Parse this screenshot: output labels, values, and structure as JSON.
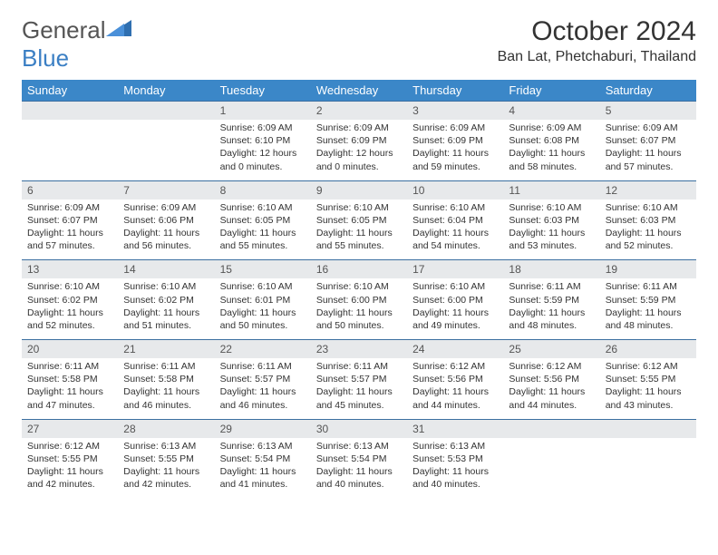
{
  "logo": {
    "part1": "General",
    "part2": "Blue"
  },
  "title": "October 2024",
  "location": "Ban Lat, Phetchaburi, Thailand",
  "colors": {
    "header_bg": "#3b87c8",
    "header_text": "#ffffff",
    "daynum_bg": "#e7e9eb",
    "border": "#3b6fa0"
  },
  "weekdays": [
    "Sunday",
    "Monday",
    "Tuesday",
    "Wednesday",
    "Thursday",
    "Friday",
    "Saturday"
  ],
  "weeks": [
    {
      "nums": [
        "",
        "",
        "1",
        "2",
        "3",
        "4",
        "5"
      ],
      "cells": [
        null,
        null,
        {
          "sunrise": "Sunrise: 6:09 AM",
          "sunset": "Sunset: 6:10 PM",
          "daylight": "Daylight: 12 hours and 0 minutes."
        },
        {
          "sunrise": "Sunrise: 6:09 AM",
          "sunset": "Sunset: 6:09 PM",
          "daylight": "Daylight: 12 hours and 0 minutes."
        },
        {
          "sunrise": "Sunrise: 6:09 AM",
          "sunset": "Sunset: 6:09 PM",
          "daylight": "Daylight: 11 hours and 59 minutes."
        },
        {
          "sunrise": "Sunrise: 6:09 AM",
          "sunset": "Sunset: 6:08 PM",
          "daylight": "Daylight: 11 hours and 58 minutes."
        },
        {
          "sunrise": "Sunrise: 6:09 AM",
          "sunset": "Sunset: 6:07 PM",
          "daylight": "Daylight: 11 hours and 57 minutes."
        }
      ]
    },
    {
      "nums": [
        "6",
        "7",
        "8",
        "9",
        "10",
        "11",
        "12"
      ],
      "cells": [
        {
          "sunrise": "Sunrise: 6:09 AM",
          "sunset": "Sunset: 6:07 PM",
          "daylight": "Daylight: 11 hours and 57 minutes."
        },
        {
          "sunrise": "Sunrise: 6:09 AM",
          "sunset": "Sunset: 6:06 PM",
          "daylight": "Daylight: 11 hours and 56 minutes."
        },
        {
          "sunrise": "Sunrise: 6:10 AM",
          "sunset": "Sunset: 6:05 PM",
          "daylight": "Daylight: 11 hours and 55 minutes."
        },
        {
          "sunrise": "Sunrise: 6:10 AM",
          "sunset": "Sunset: 6:05 PM",
          "daylight": "Daylight: 11 hours and 55 minutes."
        },
        {
          "sunrise": "Sunrise: 6:10 AM",
          "sunset": "Sunset: 6:04 PM",
          "daylight": "Daylight: 11 hours and 54 minutes."
        },
        {
          "sunrise": "Sunrise: 6:10 AM",
          "sunset": "Sunset: 6:03 PM",
          "daylight": "Daylight: 11 hours and 53 minutes."
        },
        {
          "sunrise": "Sunrise: 6:10 AM",
          "sunset": "Sunset: 6:03 PM",
          "daylight": "Daylight: 11 hours and 52 minutes."
        }
      ]
    },
    {
      "nums": [
        "13",
        "14",
        "15",
        "16",
        "17",
        "18",
        "19"
      ],
      "cells": [
        {
          "sunrise": "Sunrise: 6:10 AM",
          "sunset": "Sunset: 6:02 PM",
          "daylight": "Daylight: 11 hours and 52 minutes."
        },
        {
          "sunrise": "Sunrise: 6:10 AM",
          "sunset": "Sunset: 6:02 PM",
          "daylight": "Daylight: 11 hours and 51 minutes."
        },
        {
          "sunrise": "Sunrise: 6:10 AM",
          "sunset": "Sunset: 6:01 PM",
          "daylight": "Daylight: 11 hours and 50 minutes."
        },
        {
          "sunrise": "Sunrise: 6:10 AM",
          "sunset": "Sunset: 6:00 PM",
          "daylight": "Daylight: 11 hours and 50 minutes."
        },
        {
          "sunrise": "Sunrise: 6:10 AM",
          "sunset": "Sunset: 6:00 PM",
          "daylight": "Daylight: 11 hours and 49 minutes."
        },
        {
          "sunrise": "Sunrise: 6:11 AM",
          "sunset": "Sunset: 5:59 PM",
          "daylight": "Daylight: 11 hours and 48 minutes."
        },
        {
          "sunrise": "Sunrise: 6:11 AM",
          "sunset": "Sunset: 5:59 PM",
          "daylight": "Daylight: 11 hours and 48 minutes."
        }
      ]
    },
    {
      "nums": [
        "20",
        "21",
        "22",
        "23",
        "24",
        "25",
        "26"
      ],
      "cells": [
        {
          "sunrise": "Sunrise: 6:11 AM",
          "sunset": "Sunset: 5:58 PM",
          "daylight": "Daylight: 11 hours and 47 minutes."
        },
        {
          "sunrise": "Sunrise: 6:11 AM",
          "sunset": "Sunset: 5:58 PM",
          "daylight": "Daylight: 11 hours and 46 minutes."
        },
        {
          "sunrise": "Sunrise: 6:11 AM",
          "sunset": "Sunset: 5:57 PM",
          "daylight": "Daylight: 11 hours and 46 minutes."
        },
        {
          "sunrise": "Sunrise: 6:11 AM",
          "sunset": "Sunset: 5:57 PM",
          "daylight": "Daylight: 11 hours and 45 minutes."
        },
        {
          "sunrise": "Sunrise: 6:12 AM",
          "sunset": "Sunset: 5:56 PM",
          "daylight": "Daylight: 11 hours and 44 minutes."
        },
        {
          "sunrise": "Sunrise: 6:12 AM",
          "sunset": "Sunset: 5:56 PM",
          "daylight": "Daylight: 11 hours and 44 minutes."
        },
        {
          "sunrise": "Sunrise: 6:12 AM",
          "sunset": "Sunset: 5:55 PM",
          "daylight": "Daylight: 11 hours and 43 minutes."
        }
      ]
    },
    {
      "nums": [
        "27",
        "28",
        "29",
        "30",
        "31",
        "",
        ""
      ],
      "cells": [
        {
          "sunrise": "Sunrise: 6:12 AM",
          "sunset": "Sunset: 5:55 PM",
          "daylight": "Daylight: 11 hours and 42 minutes."
        },
        {
          "sunrise": "Sunrise: 6:13 AM",
          "sunset": "Sunset: 5:55 PM",
          "daylight": "Daylight: 11 hours and 42 minutes."
        },
        {
          "sunrise": "Sunrise: 6:13 AM",
          "sunset": "Sunset: 5:54 PM",
          "daylight": "Daylight: 11 hours and 41 minutes."
        },
        {
          "sunrise": "Sunrise: 6:13 AM",
          "sunset": "Sunset: 5:54 PM",
          "daylight": "Daylight: 11 hours and 40 minutes."
        },
        {
          "sunrise": "Sunrise: 6:13 AM",
          "sunset": "Sunset: 5:53 PM",
          "daylight": "Daylight: 11 hours and 40 minutes."
        },
        null,
        null
      ]
    }
  ]
}
